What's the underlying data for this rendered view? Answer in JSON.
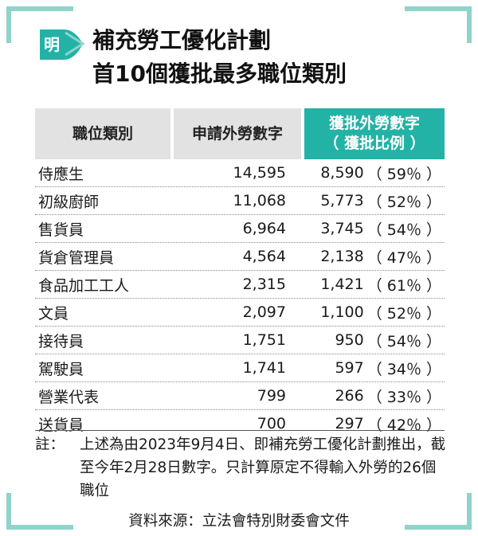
{
  "brand": {
    "logo_char": "明",
    "accent": "#23b2a6",
    "frame": "#8fd3cb"
  },
  "title": {
    "line1": "補充勞工優化計劃",
    "line2": "首10個獲批最多職位類別"
  },
  "table": {
    "headers": {
      "category": "職位類別",
      "applied": "申請外勞數字",
      "approved": "獲批外勞數字",
      "approved_sub": "（ 獲批比例 ）"
    },
    "rows": [
      {
        "category": "侍應生",
        "applied": "14,595",
        "approved": "8,590",
        "ratio": "（ 59％ ）"
      },
      {
        "category": "初級廚師",
        "applied": "11,068",
        "approved": "5,773",
        "ratio": "（ 52％ ）"
      },
      {
        "category": "售貨員",
        "applied": "6,964",
        "approved": "3,745",
        "ratio": "（ 54％ ）"
      },
      {
        "category": "貨倉管理員",
        "applied": "4,564",
        "approved": "2,138",
        "ratio": "（ 47％ ）"
      },
      {
        "category": "食品加工工人",
        "applied": "2,315",
        "approved": "1,421",
        "ratio": "（ 61％ ）"
      },
      {
        "category": "文員",
        "applied": "2,097",
        "approved": "1,100",
        "ratio": "（ 52％ ）"
      },
      {
        "category": "接待員",
        "applied": "1,751",
        "approved": "950",
        "ratio": "（ 54％ ）"
      },
      {
        "category": "駕駛員",
        "applied": "1,741",
        "approved": "597",
        "ratio": "（ 34％ ）"
      },
      {
        "category": "營業代表",
        "applied": "799",
        "approved": "266",
        "ratio": "（ 33％ ）"
      },
      {
        "category": "送貨員",
        "applied": "700",
        "approved": "297",
        "ratio": "（ 42％ ）"
      }
    ]
  },
  "note": {
    "label": "註：",
    "text": "上述為由2023年9月4日、即補充勞工優化計劃推出，截至今年2月28日數字。只計算原定不得輸入外勞的26個職位"
  },
  "source": "資料來源：立法會特別財委會文件"
}
